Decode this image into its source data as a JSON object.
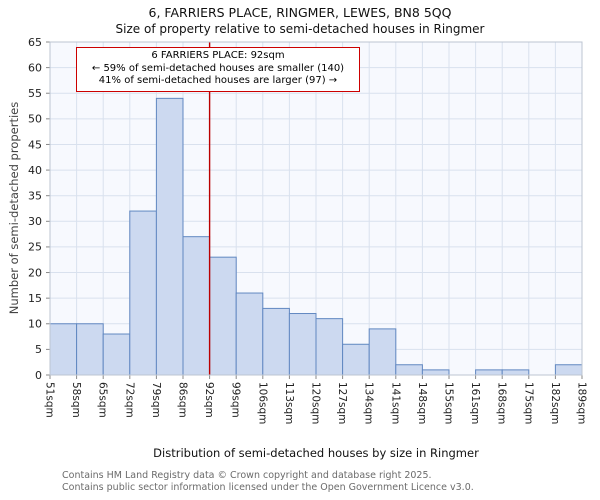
{
  "title": "6, FARRIERS PLACE, RINGMER, LEWES, BN8 5QQ",
  "subtitle": "Size of property relative to semi-detached houses in Ringmer",
  "annotation": {
    "line1": "6 FARRIERS PLACE: 92sqm",
    "line2": "← 59% of semi-detached houses are smaller (140)",
    "line3": "41% of semi-detached houses are larger (97) →"
  },
  "footer": {
    "line1": "Contains HM Land Registry data © Crown copyright and database right 2025.",
    "line2": "Contains public sector information licensed under the Open Government Licence v3.0."
  },
  "chart_data": {
    "type": "bar",
    "title": "6, FARRIERS PLACE, RINGMER, LEWES, BN8 5QQ",
    "subtitle": "Size of property relative to semi-detached houses in Ringmer",
    "xlabel": "Distribution of semi-detached houses by size in Ringmer",
    "ylabel": "Number of semi-detached properties",
    "categories": [
      "51sqm",
      "58sqm",
      "65sqm",
      "72sqm",
      "79sqm",
      "86sqm",
      "92sqm",
      "99sqm",
      "106sqm",
      "113sqm",
      "120sqm",
      "127sqm",
      "134sqm",
      "141sqm",
      "148sqm",
      "155sqm",
      "161sqm",
      "168sqm",
      "175sqm",
      "182sqm",
      "189sqm"
    ],
    "values": [
      10,
      10,
      8,
      32,
      54,
      27,
      23,
      16,
      13,
      12,
      11,
      6,
      9,
      2,
      1,
      0,
      1,
      1,
      0,
      2
    ],
    "ylim": [
      0,
      65
    ],
    "ytick_step": 5,
    "grid": true,
    "legend": "none",
    "marker": {
      "label": "92sqm",
      "edge_index": 6
    },
    "colors": {
      "bar_fill": "#ccd9f0",
      "bar_stroke": "#6188c1",
      "marker_line": "#bb0000",
      "grid": "#d9e1ee",
      "plot_bg": "#f7f9fe",
      "spine": "#bcc5d2",
      "annotation_border": "#cc0000"
    }
  }
}
